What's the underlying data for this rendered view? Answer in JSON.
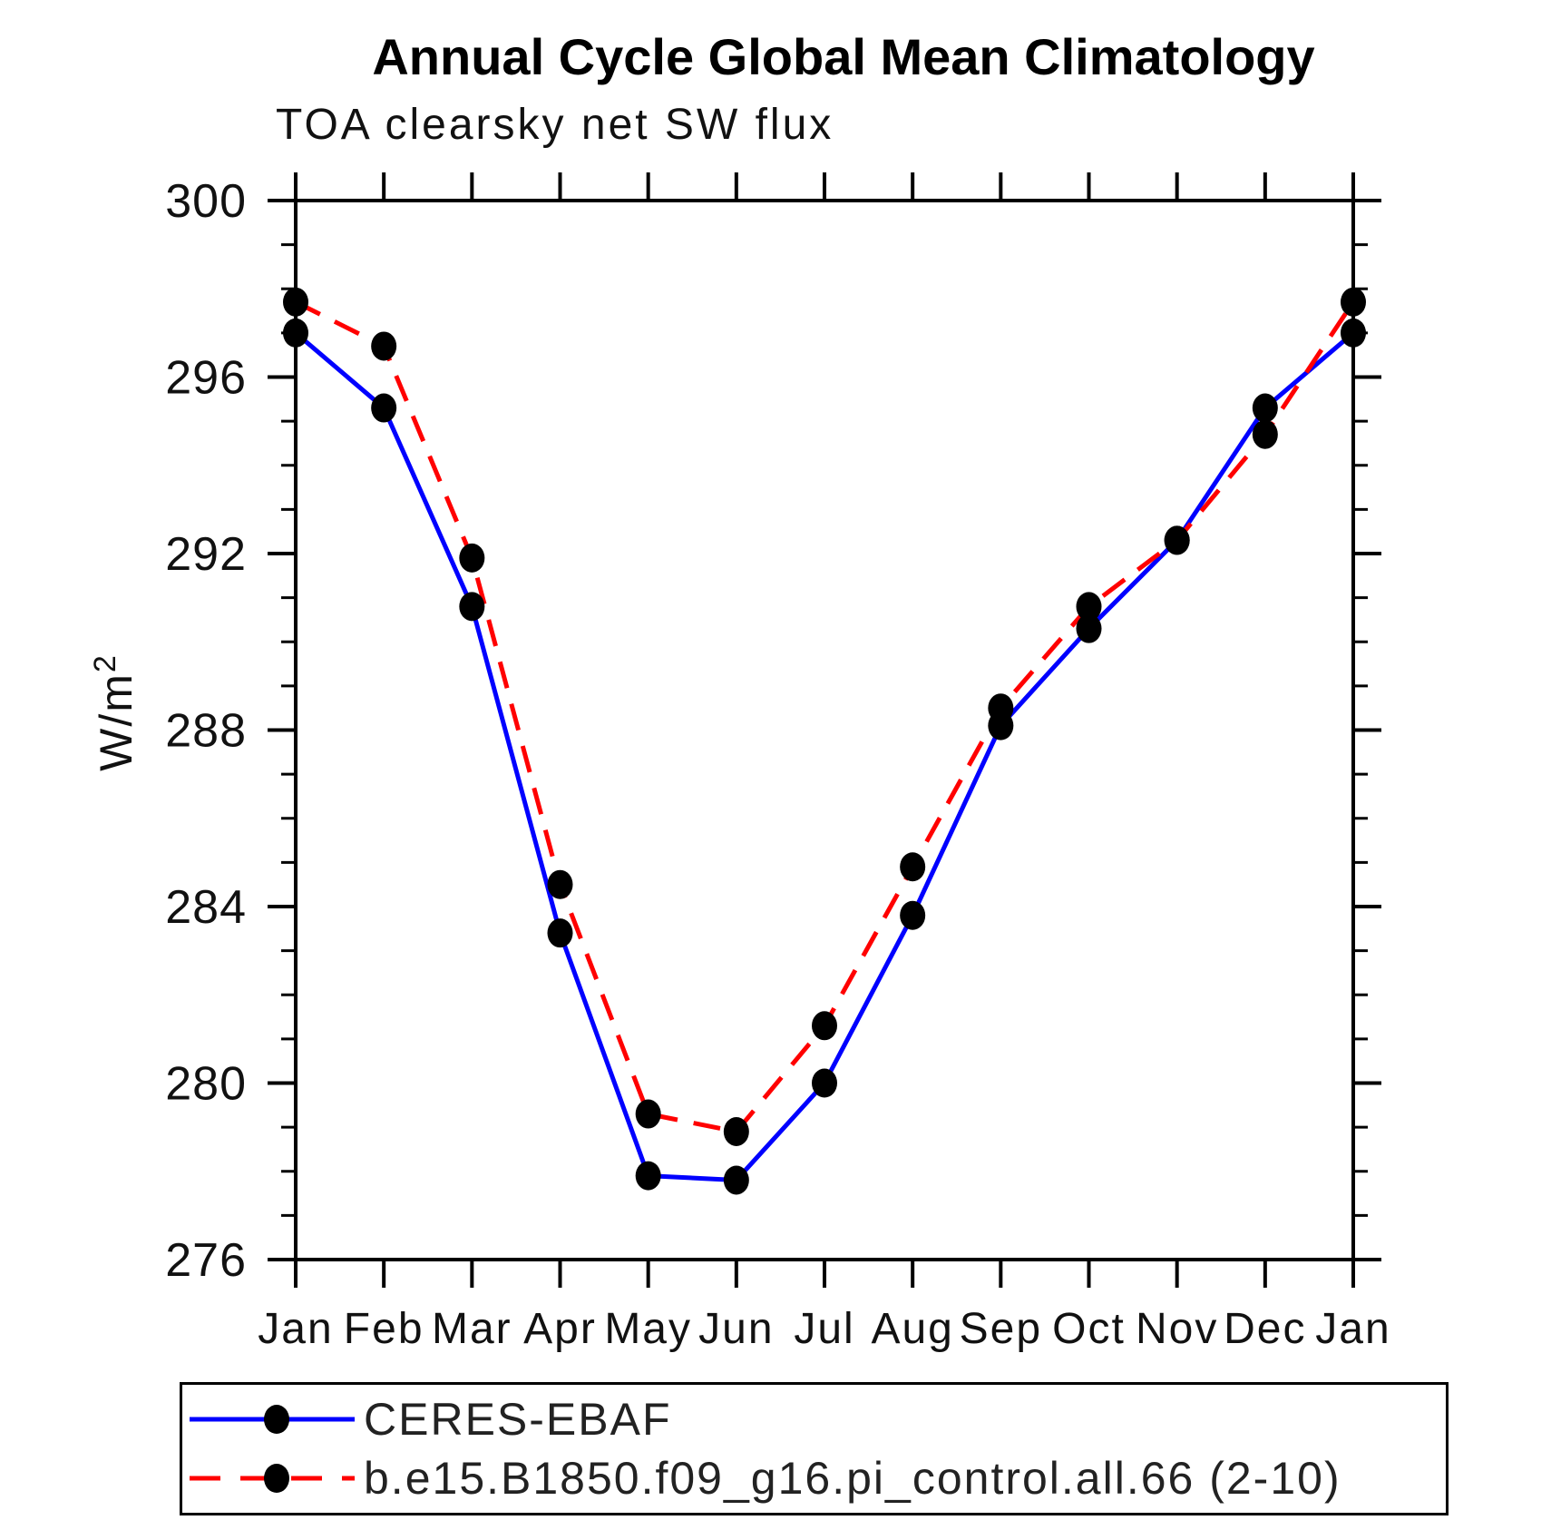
{
  "chart_data": {
    "type": "line",
    "title": "Annual Cycle Global Mean Climatology",
    "subtitle": "TOA clearsky net SW flux",
    "ylabel": {
      "base": "W/m",
      "sup": "2"
    },
    "x_categories": [
      "Jan",
      "Feb",
      "Mar",
      "Apr",
      "May",
      "Jun",
      "Jul",
      "Aug",
      "Sep",
      "Oct",
      "Nov",
      "Dec",
      "Jan"
    ],
    "ylim": [
      276,
      300
    ],
    "ytick_values": [
      300,
      296,
      292,
      288,
      284,
      280,
      276
    ],
    "ytick_minor_step": 1,
    "grid": false,
    "legend_position": "bottom-left-box",
    "marker_color": "#000000",
    "series": [
      {
        "name": "CERES-EBAF",
        "line_color": "#0000ff",
        "line_style": "solid",
        "values": [
          297.0,
          295.3,
          290.8,
          283.4,
          277.9,
          277.8,
          280.0,
          283.8,
          288.1,
          290.3,
          292.3,
          295.3,
          297.0
        ]
      },
      {
        "name": "b.e15.B1850.f09_g16.pi_control.all.66 (2-10)",
        "line_color": "#ff0000",
        "line_style": "dashed",
        "values": [
          297.7,
          296.7,
          291.9,
          284.5,
          279.3,
          278.9,
          281.3,
          284.9,
          288.5,
          290.8,
          292.3,
          294.7,
          297.7
        ]
      }
    ]
  }
}
